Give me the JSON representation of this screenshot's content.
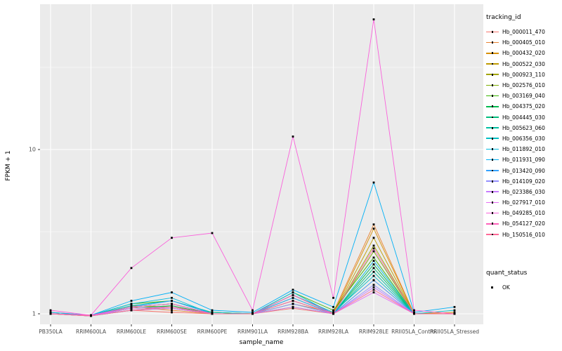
{
  "chart_data": {
    "type": "line",
    "title": "",
    "xlabel": "sample_name",
    "ylabel": "FPKM + 1",
    "y_scale": "log10",
    "y_ticks": [
      1,
      10
    ],
    "y_minor_ticks": [
      3.1623,
      31.623
    ],
    "ylim": [
      0.93,
      75
    ],
    "legend_position": "right",
    "panel_bg": "#EBEBEB",
    "grid_color": "#FFFFFF",
    "tick_label_color": "#4D4D4D",
    "point_color": "#000000",
    "legend_title": "tracking_id",
    "quant_legend": {
      "title": "quant_status",
      "items": [
        {
          "label": "OK",
          "symbol": "black-square"
        }
      ]
    },
    "categories": [
      "PB350LA",
      "RRIM600LA",
      "RRIM600LE",
      "RRIM600SE",
      "RRIM600PE",
      "RRIM901LA",
      "RRIM928BA",
      "RRIM928LA",
      "RRIM928LE",
      "RRII05LA_Control",
      "RRII05LA_Stressed"
    ],
    "series": [
      {
        "name": "Hb_000011_470",
        "color": "#F8766D",
        "values": [
          1.0,
          0.98,
          1.05,
          1.02,
          1.0,
          1.0,
          1.08,
          1.0,
          1.6,
          1.0,
          1.0
        ]
      },
      {
        "name": "Hb_000405_010",
        "color": "#EA8331",
        "values": [
          1.0,
          0.98,
          1.1,
          1.05,
          1.0,
          1.0,
          1.15,
          1.02,
          3.5,
          1.0,
          1.0
        ]
      },
      {
        "name": "Hb_000432_020",
        "color": "#D89000",
        "values": [
          1.0,
          0.97,
          1.08,
          1.1,
          1.0,
          1.0,
          1.2,
          1.0,
          3.3,
          1.0,
          1.02
        ]
      },
      {
        "name": "Hb_000522_030",
        "color": "#C09B00",
        "values": [
          1.02,
          0.98,
          1.05,
          1.08,
          1.0,
          1.0,
          1.1,
          1.0,
          2.9,
          1.0,
          1.0
        ]
      },
      {
        "name": "Hb_000923_110",
        "color": "#A3A500",
        "values": [
          1.0,
          0.98,
          1.12,
          1.1,
          1.02,
          1.0,
          1.25,
          1.0,
          2.6,
          1.0,
          1.0
        ]
      },
      {
        "name": "Hb_002576_010",
        "color": "#7CAE00",
        "values": [
          1.0,
          0.97,
          1.1,
          1.15,
          1.0,
          1.0,
          1.3,
          1.0,
          2.4,
          1.0,
          1.0
        ]
      },
      {
        "name": "Hb_003169_040",
        "color": "#39B600",
        "values": [
          1.0,
          0.98,
          1.15,
          1.2,
          1.02,
          1.0,
          1.35,
          1.05,
          2.2,
          1.0,
          1.0
        ]
      },
      {
        "name": "Hb_004375_020",
        "color": "#00BB4E",
        "values": [
          1.0,
          0.98,
          1.08,
          1.12,
          1.0,
          1.0,
          1.2,
          1.0,
          2.0,
          1.0,
          1.0
        ]
      },
      {
        "name": "Hb_004445_030",
        "color": "#00BF7D",
        "values": [
          1.0,
          0.97,
          1.05,
          1.1,
          1.0,
          1.0,
          1.15,
          1.0,
          1.9,
          1.0,
          1.0
        ]
      },
      {
        "name": "Hb_005623_060",
        "color": "#00C1A3",
        "values": [
          1.0,
          0.98,
          1.1,
          1.15,
          1.0,
          1.0,
          1.25,
          1.0,
          1.8,
          1.0,
          1.0
        ]
      },
      {
        "name": "Hb_006356_030",
        "color": "#00BFC4",
        "values": [
          1.0,
          0.98,
          1.12,
          1.2,
          1.02,
          1.0,
          1.3,
          1.02,
          1.7,
          1.0,
          1.05
        ]
      },
      {
        "name": "Hb_011892_010",
        "color": "#00BAE0",
        "values": [
          1.0,
          0.98,
          1.15,
          1.25,
          1.0,
          1.0,
          1.35,
          1.0,
          2.1,
          1.0,
          1.0
        ]
      },
      {
        "name": "Hb_011931_090",
        "color": "#00B0F6",
        "values": [
          1.02,
          0.98,
          1.2,
          1.35,
          1.05,
          1.02,
          1.4,
          1.1,
          6.3,
          1.02,
          1.1
        ]
      },
      {
        "name": "Hb_013420_090",
        "color": "#35A2FF",
        "values": [
          1.0,
          0.98,
          1.1,
          1.2,
          1.0,
          1.0,
          1.25,
          1.0,
          1.6,
          1.0,
          1.0
        ]
      },
      {
        "name": "Hb_014109_020",
        "color": "#9590FF",
        "values": [
          1.0,
          0.97,
          1.08,
          1.1,
          1.0,
          1.0,
          1.15,
          1.0,
          1.5,
          1.0,
          1.0
        ]
      },
      {
        "name": "Hb_023386_030",
        "color": "#C77CFF",
        "values": [
          1.0,
          0.98,
          1.05,
          1.08,
          1.0,
          1.0,
          1.1,
          1.0,
          1.45,
          1.0,
          1.0
        ]
      },
      {
        "name": "Hb_027917_010",
        "color": "#E76BF3",
        "values": [
          1.0,
          0.98,
          1.08,
          1.1,
          1.0,
          1.0,
          1.2,
          1.0,
          1.35,
          1.0,
          1.0
        ]
      },
      {
        "name": "Hb_049285_010",
        "color": "#FA62DB",
        "values": [
          1.05,
          0.98,
          1.9,
          2.9,
          3.1,
          1.05,
          12.0,
          1.25,
          62.0,
          1.05,
          1.0
        ]
      },
      {
        "name": "Hb_054127_020",
        "color": "#FF62BC",
        "values": [
          1.0,
          0.98,
          1.1,
          1.15,
          1.0,
          1.0,
          1.3,
          1.0,
          2.5,
          1.0,
          1.0
        ]
      },
      {
        "name": "Hb_150516_010",
        "color": "#FF6A98",
        "values": [
          1.0,
          0.97,
          1.05,
          1.1,
          1.0,
          1.0,
          1.2,
          1.0,
          1.4,
          1.0,
          1.0
        ]
      }
    ]
  }
}
